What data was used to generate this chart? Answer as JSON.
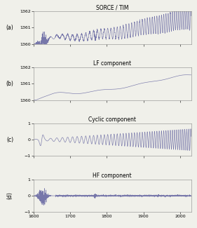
{
  "title": "SORCE / TIM",
  "panel_labels": [
    "(a)",
    "(b)",
    "(c)",
    "(d)"
  ],
  "panel_titles": [
    "LF component",
    "Cyclic component",
    "HF component"
  ],
  "xlim": [
    1600,
    2030
  ],
  "xticks": [
    1600,
    1700,
    1800,
    1900,
    2000
  ],
  "ylim_ab": [
    1360,
    1362
  ],
  "yticks_ab": [
    1360,
    1361,
    1362
  ],
  "ylim_cd": [
    -1,
    1
  ],
  "yticks_cd": [
    -1,
    0,
    1
  ],
  "line_color": "#7777aa",
  "bg_color": "#f0f0ea",
  "seed": 12
}
